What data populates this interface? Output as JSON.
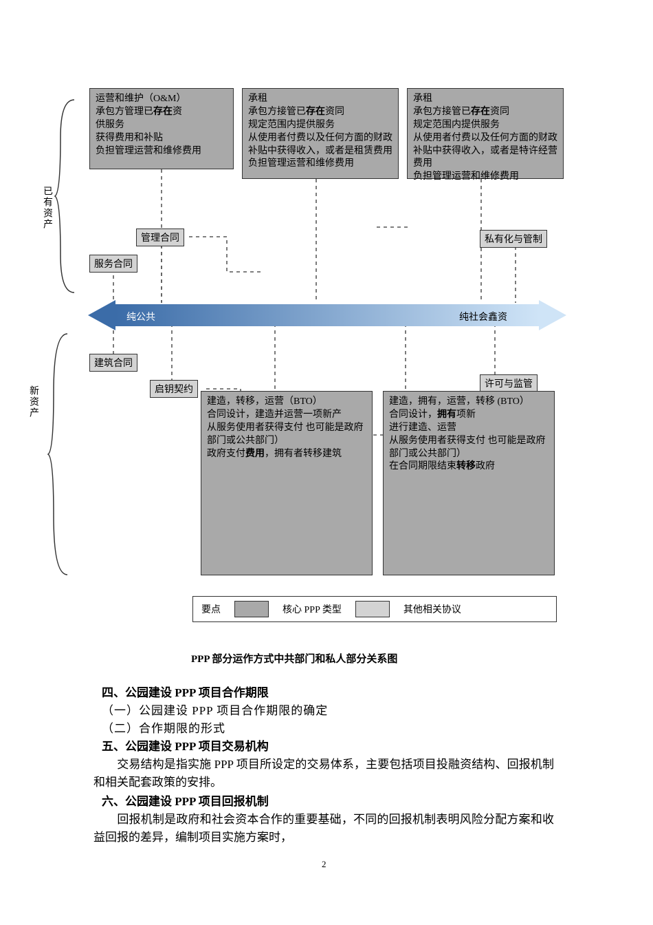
{
  "topBoxes": {
    "b1": {
      "l1": "运营和维护（O&M）",
      "l2": "承包方管理已<b>存在</b>资<br>供服务",
      "l3": "获得费用和补贴",
      "l4": "负担管理运营和维修费用"
    },
    "b2": {
      "l1": "承租",
      "l2": "承包方接管已<b>存在</b>资同",
      "l3": "规定范围内提供服务",
      "l4": "从使用者付费以及任何方面的财政补贴中获得收入，或者是租赁费用",
      "l5": "负担管理运营和维修费用"
    },
    "b3": {
      "l1": "承租",
      "l2": "承包方接管已<b>存在</b>资同",
      "l3": "规定范围内提供服务",
      "l4": "从使用者付费以及任何方面的财政补贴中获得收入，或者是特许经营费用",
      "l5": "负担管理运营和维修费用"
    }
  },
  "labelsTop": {
    "mgmt": "管理合同",
    "service": "服务合同",
    "priv": "私有化与管制"
  },
  "brace": {
    "existing": "已有资产",
    "new": "新资产"
  },
  "arrow": {
    "left": "纯公共",
    "right": "纯社会鑫资"
  },
  "labelsBottom": {
    "construction": "建筑合同",
    "turnkey": "启钥契约",
    "license": "许可与监管"
  },
  "bottomBoxes": {
    "b1": {
      "l1": "建造，转移，运营（BTO）",
      "l2": "合同设计，建造并运营一项新产",
      "l3": "从服务使用者获得支付 也可能是政府部门或公共部门）",
      "l4": "政府支付<b>费用</b>，拥有者转移建筑"
    },
    "b2": {
      "l1": "建造，拥有，运营，转移 (BTO）",
      "l2": "合同设计，<b>拥有</b>项新",
      "l3": "进行建造、运营",
      "l4": "从服务使用者获得支付 也可能是政府部门或公共部门）",
      "l5": "在合同期限结束<b>转移</b>政府"
    }
  },
  "legend": {
    "title": "要点",
    "core": "核心 PPP 类型",
    "other": "其他相关协议",
    "coreColor": "#a9a9a9",
    "otherColor": "#d3d3d3"
  },
  "caption": "PPP 部分运作方式中共部门和私人部分关系图",
  "text": {
    "h4": "四、公园建设 PPP 项目合作期限",
    "h4a": "（一）公园建设 PPP 项目合作期限的确定",
    "h4b": "（二）合作期限的形式",
    "h5": "五、公园建设 PPP 项目交易机构",
    "p5": "　　交易结构是指实施 PPP 项目所设定的交易体系，主要包括项目投融资结构、回报机制和相关配套政策的安排。",
    "h6": "六、公园建设 PPP 项目回报机制",
    "p6": "　　回报机制是政府和社会资本合作的重要基础，不同的回报机制表明风险分配方案和收益回报的差异，编制项目实施方案时，"
  },
  "pageNum": "2",
  "colors": {
    "darkBox": "#a9a9a9",
    "lightBox": "#d3d3d3",
    "arrowStart": "#3b6ca8",
    "arrowEnd": "#cfe4f7",
    "dash": "#333333"
  }
}
